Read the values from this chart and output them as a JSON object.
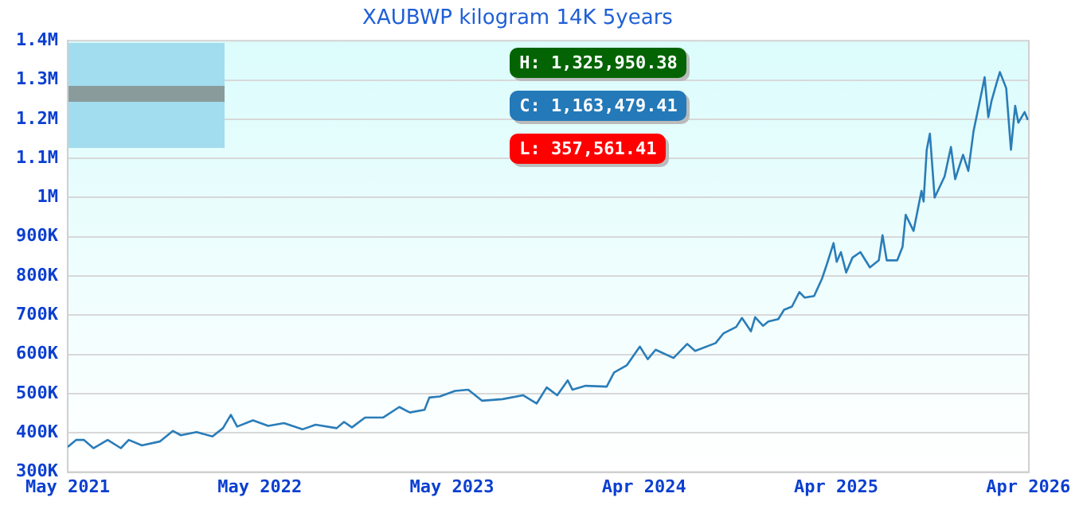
{
  "chart_data": {
    "type": "line",
    "title": "XAUBWP kilogram 14K 5years",
    "x": [
      "2021-05-01",
      "2021-05-17",
      "2021-06-01",
      "2021-06-19",
      "2021-07-16",
      "2021-08-10",
      "2021-08-25",
      "2021-09-19",
      "2021-10-23",
      "2021-11-17",
      "2021-12-02",
      "2022-01-01",
      "2022-01-31",
      "2022-02-20",
      "2022-03-07",
      "2022-03-19",
      "2022-04-18",
      "2022-05-17",
      "2022-06-16",
      "2022-07-21",
      "2022-08-15",
      "2022-09-24",
      "2022-10-08",
      "2022-10-23",
      "2022-11-17",
      "2022-12-21",
      "2023-01-21",
      "2023-02-10",
      "2023-03-10",
      "2023-03-19",
      "2023-04-08",
      "2023-05-07",
      "2023-06-01",
      "2023-06-27",
      "2023-08-05",
      "2023-09-13",
      "2023-10-09",
      "2023-10-28",
      "2023-11-17",
      "2023-12-07",
      "2023-12-16",
      "2024-01-10",
      "2024-02-19",
      "2024-03-04",
      "2024-03-28",
      "2024-04-22",
      "2024-05-07",
      "2024-05-22",
      "2024-06-25",
      "2024-07-21",
      "2024-08-05",
      "2024-09-13",
      "2024-09-28",
      "2024-10-22",
      "2024-11-02",
      "2024-11-19",
      "2024-11-27",
      "2024-12-12",
      "2024-12-22",
      "2025-01-10",
      "2025-01-21",
      "2025-02-05",
      "2025-02-19",
      "2025-03-01",
      "2025-03-19",
      "2025-04-03",
      "2025-04-13",
      "2025-04-25",
      "2025-05-01",
      "2025-05-09",
      "2025-05-19",
      "2025-05-31",
      "2025-06-15",
      "2025-07-03",
      "2025-07-20",
      "2025-07-27",
      "2025-08-04",
      "2025-08-24",
      "2025-09-03",
      "2025-09-09",
      "2025-09-24",
      "2025-10-09",
      "2025-10-13",
      "2025-10-19",
      "2025-10-25",
      "2025-11-03",
      "2025-11-22",
      "2025-12-04",
      "2025-12-12",
      "2025-12-27",
      "2026-01-06",
      "2026-01-16",
      "2026-02-01",
      "2026-02-06",
      "2026-02-13",
      "2026-02-19",
      "2026-03-01",
      "2026-03-07",
      "2026-03-19",
      "2026-03-28",
      "2026-04-05",
      "2026-04-11",
      "2026-04-23",
      "2026-04-29"
    ],
    "series": [
      {
        "color": "#2a7db8",
        "values": [
          364000,
          382000,
          382000,
          361000,
          382000,
          361000,
          382000,
          368000,
          378000,
          405000,
          394000,
          402000,
          391000,
          412000,
          446000,
          416000,
          432000,
          418000,
          425000,
          409000,
          421000,
          412000,
          428000,
          414000,
          439000,
          439000,
          466000,
          452000,
          459000,
          490000,
          493000,
          507000,
          510000,
          482000,
          486000,
          496000,
          475000,
          516000,
          496000,
          534000,
          510000,
          520000,
          518000,
          554000,
          572000,
          620000,
          588000,
          612000,
          591000,
          627000,
          609000,
          629000,
          654000,
          670000,
          693000,
          659000,
          695000,
          673000,
          684000,
          690000,
          714000,
          722000,
          759000,
          745000,
          749000,
          793000,
          833000,
          884000,
          836000,
          861000,
          809000,
          847000,
          861000,
          822000,
          840000,
          904000,
          840000,
          840000,
          874000,
          956000,
          915000,
          1017000,
          990000,
          1122000,
          1163000,
          1000000,
          1054000,
          1129000,
          1047000,
          1109000,
          1068000,
          1170000,
          1273000,
          1307000,
          1205000,
          1246000,
          1293000,
          1320000,
          1279000,
          1122000,
          1234000,
          1191000,
          1218000,
          1198000
        ]
      }
    ],
    "xlim": [
      "2021-05-01",
      "2026-05-01"
    ],
    "xticks": [
      {
        "value": "2021-05-01",
        "label": "May 2021"
      },
      {
        "value": "2022-05-01",
        "label": "May 2022"
      },
      {
        "value": "2023-05-01",
        "label": "May 2023"
      },
      {
        "value": "2024-04-30",
        "label": "Apr 2024"
      },
      {
        "value": "2025-04-30",
        "label": "Apr 2025"
      },
      {
        "value": "2026-04-30",
        "label": "Apr 2026"
      }
    ],
    "ylim": [
      300000,
      1400000
    ],
    "yticks": [
      {
        "value": 300000,
        "label": "300K"
      },
      {
        "value": 400000,
        "label": "400K"
      },
      {
        "value": 500000,
        "label": "500K"
      },
      {
        "value": 600000,
        "label": "600K"
      },
      {
        "value": 700000,
        "label": "700K"
      },
      {
        "value": 800000,
        "label": "800K"
      },
      {
        "value": 900000,
        "label": "900K"
      },
      {
        "value": 1000000,
        "label": "1M"
      },
      {
        "value": 1100000,
        "label": "1.1M"
      },
      {
        "value": 1200000,
        "label": "1.2M"
      },
      {
        "value": 1300000,
        "label": "1.3M"
      },
      {
        "value": 1400000,
        "label": "1.4M"
      }
    ],
    "grid": "y",
    "annotations": [
      "H: 1,325,950.38",
      "C: 1,163,479.41",
      "L: 357,561.41"
    ]
  }
}
